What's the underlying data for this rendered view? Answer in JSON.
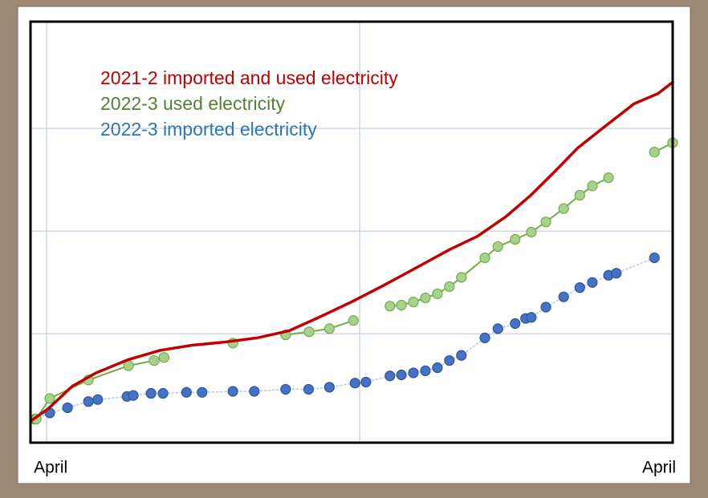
{
  "chart_data": {
    "type": "line",
    "series": [
      {
        "name": "2021-2 imported and used electricity",
        "color": "#c00000",
        "style": "line",
        "x": [
          -0.28,
          0.03,
          0.49,
          0.95,
          1.57,
          2.18,
          2.8,
          3.42,
          4.03,
          4.65,
          5.26,
          5.88,
          6.49,
          7.11,
          7.72,
          8.26,
          8.8,
          9.26,
          9.72,
          10.18,
          10.65,
          11.26,
          11.72,
          12
        ],
        "values": [
          0.22,
          0.33,
          0.55,
          0.68,
          0.81,
          0.9,
          0.95,
          0.98,
          1.02,
          1.09,
          1.23,
          1.38,
          1.54,
          1.71,
          1.88,
          2.01,
          2.2,
          2.4,
          2.63,
          2.87,
          3.06,
          3.3,
          3.4,
          3.51
        ]
      },
      {
        "name": "2022-3 used electricity",
        "color": "#70ad47",
        "marker_color": "#a9d18e",
        "text_color": "#548235",
        "style": "line-markers",
        "x": [
          -0.2,
          0.06,
          0.8,
          1.57,
          2.06,
          2.25,
          null,
          3.57,
          null,
          4.58,
          5.03,
          5.42,
          5.88,
          null,
          6.58,
          6.8,
          7.03,
          7.26,
          7.49,
          7.72,
          7.95,
          8.4,
          8.65,
          8.98,
          9.29,
          9.57,
          9.91,
          10.22,
          10.46,
          10.77,
          null,
          11.65,
          12
        ],
        "values": [
          0.23,
          0.43,
          0.61,
          0.75,
          0.8,
          0.83,
          null,
          0.97,
          null,
          1.05,
          1.08,
          1.11,
          1.19,
          null,
          1.33,
          1.34,
          1.37,
          1.41,
          1.45,
          1.52,
          1.61,
          1.8,
          1.91,
          1.98,
          2.05,
          2.15,
          2.28,
          2.41,
          2.5,
          2.58,
          null,
          2.83,
          2.92
        ]
      },
      {
        "name": "2022-3 imported electricity",
        "color": "#4472c4",
        "text_color": "#2e75b6",
        "style": "markers-dotted",
        "x": [
          -0.22,
          0.06,
          0.4,
          0.8,
          0.98,
          1.54,
          1.66,
          2.0,
          2.23,
          2.68,
          2.98,
          3.57,
          3.98,
          4.58,
          5.02,
          5.42,
          5.91,
          6.12,
          6.58,
          6.8,
          7.03,
          7.26,
          7.49,
          7.72,
          7.95,
          8.4,
          8.65,
          8.98,
          9.18,
          9.29,
          9.57,
          9.91,
          10.22,
          10.46,
          10.77,
          10.92,
          11.65
        ],
        "values": [
          0.23,
          0.29,
          0.34,
          0.4,
          0.42,
          0.45,
          0.46,
          0.48,
          0.48,
          0.49,
          0.49,
          0.5,
          0.5,
          0.52,
          0.52,
          0.54,
          0.58,
          0.59,
          0.65,
          0.66,
          0.68,
          0.7,
          0.73,
          0.8,
          0.85,
          1.02,
          1.11,
          1.16,
          1.21,
          1.22,
          1.32,
          1.42,
          1.51,
          1.56,
          1.63,
          1.65,
          1.8
        ]
      }
    ],
    "xlim": [
      -0.31,
      12
    ],
    "xticks": [
      {
        "value": 0,
        "label": "April"
      },
      {
        "value": 12,
        "label": "April"
      }
    ],
    "xgrid": [
      0,
      6,
      12
    ],
    "ylim": [
      0,
      4.1
    ],
    "yticks": [
      1.06,
      2.06,
      3.06
    ],
    "grid": true,
    "legend": "top-left"
  }
}
